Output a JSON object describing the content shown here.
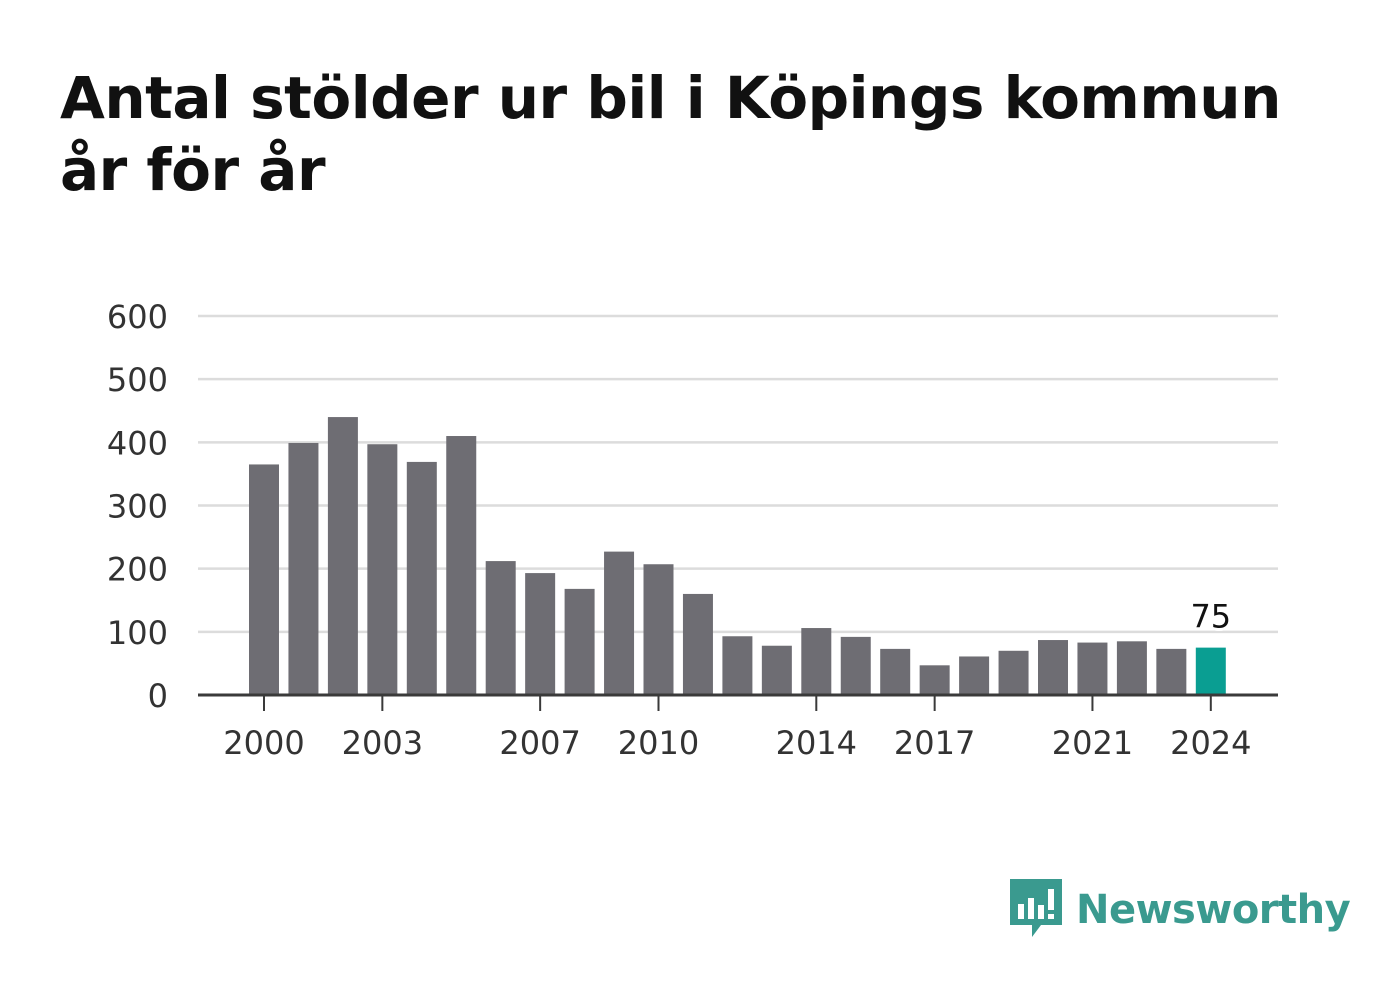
{
  "chart_data": {
    "type": "bar",
    "title": "Antal stölder ur bil i Köpings kommun år för år",
    "xlabel": "",
    "ylabel": "",
    "categories": [
      "2000",
      "2001",
      "2002",
      "2003",
      "2004",
      "2005",
      "2006",
      "2007",
      "2008",
      "2009",
      "2010",
      "2011",
      "2012",
      "2013",
      "2014",
      "2015",
      "2016",
      "2017",
      "2018",
      "2019",
      "2020",
      "2021",
      "2022",
      "2023",
      "2024"
    ],
    "values": [
      365,
      399,
      440,
      397,
      369,
      410,
      212,
      193,
      168,
      227,
      207,
      160,
      93,
      78,
      106,
      92,
      73,
      47,
      61,
      70,
      87,
      83,
      85,
      73,
      75
    ],
    "x_tick_labels": [
      "2000",
      "2003",
      "2007",
      "2010",
      "2014",
      "2017",
      "2021",
      "2024"
    ],
    "y_ticks": [
      0,
      100,
      200,
      300,
      400,
      500,
      600
    ],
    "ylim": [
      0,
      600
    ],
    "grid": true,
    "highlight": {
      "category": "2024",
      "label": "75"
    },
    "colors": {
      "bar": "#6e6d73",
      "highlight": "#0a9e92",
      "grid": "#dcdcdc",
      "axis": "#3a3a3a",
      "text": "#333333"
    }
  },
  "brand": {
    "name": "Newsworthy",
    "icon": "newsworthy-logo-icon",
    "color": "#3a9a8f"
  }
}
